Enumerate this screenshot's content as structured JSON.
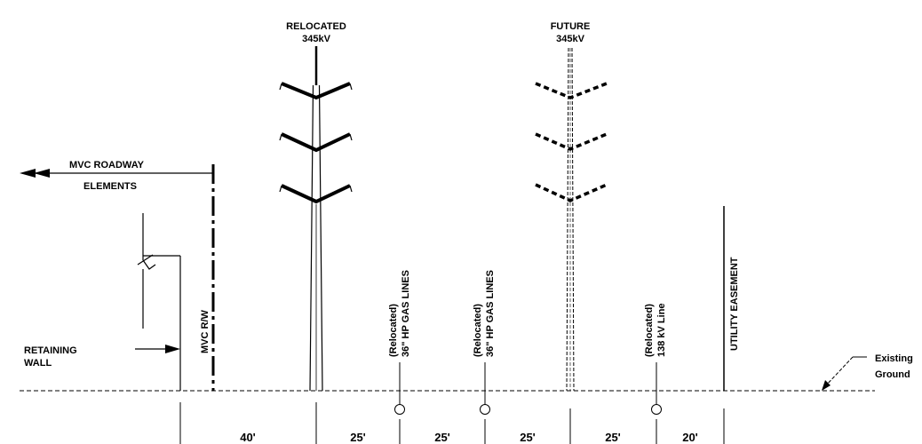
{
  "labels": {
    "relocated_345_line1": "RELOCATED",
    "relocated_345_line2": "345kV",
    "future_345_line1": "FUTURE",
    "future_345_line2": "345kV",
    "mvc_roadway_line1": "MVC ROADWAY",
    "mvc_roadway_line2": "ELEMENTS",
    "retaining_wall_line1": "RETAINING",
    "retaining_wall_line2": "WALL",
    "mvc_rw": "MVC R/W",
    "gas1_line1": "(Relocated)",
    "gas1_line2": "36\" HP GAS LINES",
    "gas2_line1": "(Relocated)",
    "gas2_line2": "36\" HP GAS LINES",
    "line138_line1": "(Relocated)",
    "line138_line2": "138 kV Line",
    "utility_easement": "UTILITY EASEMENT",
    "existing_ground_line1": "Existing",
    "existing_ground_line2": "Ground"
  },
  "dimensions": [
    "40'",
    "25'",
    "25'",
    "25'",
    "25'",
    "20'"
  ],
  "colors": {
    "line": "#000000",
    "background": "#ffffff"
  }
}
